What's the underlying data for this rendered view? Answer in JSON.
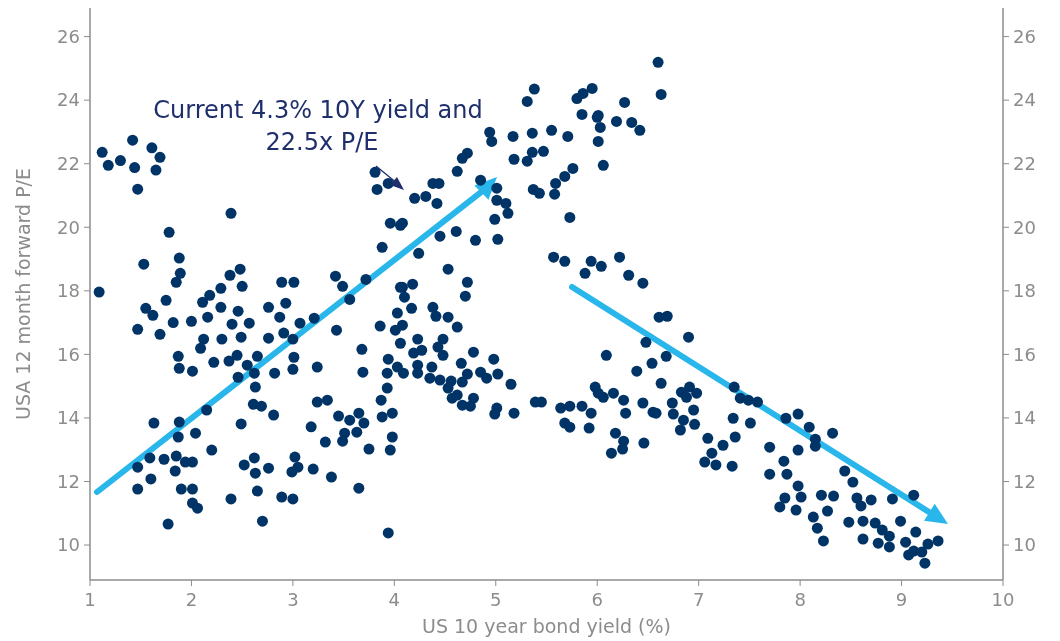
{
  "chart_data": {
    "type": "scatter",
    "xlabel": "US 10 year bond yield (%)",
    "ylabel": "USA 12 month forward P/E",
    "annotations": [
      "Current 4.3% 10Y yield and 22.5x P/E"
    ],
    "xlim": [
      1,
      10
    ],
    "xticks": [
      1,
      2,
      3,
      4,
      5,
      6,
      7,
      8,
      9,
      10
    ],
    "ylim": [
      8.9,
      26.9
    ],
    "yticks": [
      10,
      12,
      14,
      16,
      18,
      20,
      22,
      24,
      26
    ],
    "y2lim": [
      8.9,
      26.9
    ],
    "y2ticks": [
      10,
      12,
      14,
      16,
      18,
      20,
      22,
      24,
      26
    ],
    "grid": false,
    "marker": "circle",
    "series": [
      {
        "color": "#003366",
        "x": [
          1.12,
          1.18,
          1.3,
          1.42,
          1.44,
          1.47,
          1.61,
          1.65,
          1.69,
          1.09,
          2.39,
          1.78,
          1.53,
          1.88,
          1.89,
          1.85,
          1.75,
          1.55,
          1.62,
          1.47,
          1.69,
          1.82,
          2.0,
          2.11,
          2.18,
          2.29,
          2.38,
          2.48,
          2.5,
          2.29,
          2.16,
          2.4,
          2.46,
          2.57,
          2.3,
          2.49,
          2.12,
          2.09,
          1.87,
          1.88,
          2.01,
          2.22,
          2.37,
          2.45,
          2.55,
          2.65,
          2.62,
          2.46,
          2.76,
          2.76,
          2.89,
          3.01,
          2.93,
          2.87,
          2.91,
          3.0,
          3.07,
          3.21,
          3.01,
          3.0,
          2.82,
          2.63,
          2.61,
          2.69,
          2.81,
          3.24,
          3.43,
          3.42,
          3.49,
          3.56,
          3.72,
          3.86,
          3.68,
          3.69,
          3.94,
          3.93,
          3.93,
          3.87,
          3.24,
          3.34,
          3.45,
          3.56,
          3.65,
          3.7,
          3.51,
          3.63,
          3.88,
          3.98,
          3.98,
          3.96,
          3.75,
          3.49,
          3.32,
          3.18,
          3.2,
          3.38,
          3.65,
          3.94,
          3.02,
          3.05,
          2.99,
          3.0,
          2.89,
          2.76,
          2.62,
          2.52,
          2.63,
          2.65,
          2.7,
          2.39,
          2.49,
          2.2,
          2.15,
          2.04,
          1.88,
          1.87,
          1.63,
          1.59,
          1.47,
          1.73,
          1.85,
          1.94,
          2.01,
          1.84,
          1.6,
          1.47,
          1.9,
          2.01,
          2.01,
          2.06,
          1.77,
          3.81,
          3.83,
          3.94,
          3.96,
          4.06,
          3.88,
          4.06,
          5.38,
          5.31,
          4.94,
          4.96,
          5.17,
          5.36,
          5.55,
          5.71,
          5.85,
          5.8,
          5.95,
          6.0,
          6.03,
          6.19,
          6.27,
          6.34,
          6.42,
          6.63,
          6.01,
          6.06,
          5.76,
          5.68,
          5.59,
          5.58,
          5.73,
          5.47,
          5.36,
          5.31,
          5.18,
          5.37,
          5.43,
          4.72,
          4.67,
          4.62,
          4.85,
          5.01,
          5.01,
          5.1,
          5.12,
          4.99,
          5.02,
          4.8,
          4.61,
          4.38,
          4.44,
          4.2,
          4.31,
          4.42,
          4.08,
          4.24,
          4.53,
          4.72,
          4.7,
          4.08,
          4.18,
          4.1,
          4.17,
          4.03,
          4.08,
          4.38,
          4.41,
          4.53,
          4.62,
          4.01,
          4.06,
          4.23,
          4.48,
          4.43,
          4.19,
          4.27,
          4.48,
          4.03,
          4.23,
          4.37,
          4.66,
          4.78,
          4.98,
          4.09,
          4.23,
          4.35,
          4.45,
          4.56,
          4.67,
          4.72,
          4.85,
          4.91,
          5.02,
          5.15,
          4.53,
          4.62,
          4.57,
          4.67,
          4.78,
          4.75,
          5.01,
          4.99,
          5.18,
          5.39,
          5.45,
          5.64,
          5.73,
          5.85,
          5.94,
          5.68,
          5.73,
          5.92,
          5.98,
          6.01,
          6.16,
          6.26,
          6.09,
          6.39,
          6.54,
          6.68,
          6.63,
          6.45,
          6.28,
          6.18,
          6.55,
          6.74,
          5.57,
          5.68,
          5.88,
          5.94,
          6.04,
          6.22,
          6.31,
          6.45,
          6.61,
          6.69,
          6.48,
          6.6,
          5.86,
          6.01,
          4.45,
          6.9,
          6.06,
          6.26,
          6.25,
          6.14,
          6.46,
          6.58,
          6.75,
          6.83,
          6.91,
          6.88,
          6.98,
          6.95,
          6.85,
          6.96,
          6.82,
          7.09,
          7.24,
          7.13,
          7.06,
          7.17,
          7.33,
          7.36,
          7.34,
          7.35,
          7.41,
          7.49,
          7.58,
          7.51,
          7.7,
          7.7,
          7.84,
          7.87,
          7.86,
          7.98,
          8.09,
          8.15,
          8.15,
          8.32,
          7.98,
          7.98,
          8.01,
          7.85,
          7.8,
          7.96,
          8.21,
          8.33,
          8.27,
          8.13,
          8.17,
          8.23,
          8.44,
          8.52,
          8.56,
          8.6,
          8.7,
          8.48,
          8.62,
          8.62,
          8.74,
          8.81,
          8.88,
          8.77,
          8.88,
          8.91,
          9.12,
          8.99,
          9.04,
          9.14,
          9.07,
          9.12,
          9.2,
          9.23,
          9.26,
          9.36
        ],
        "values": [
          22.36,
          21.95,
          22.1,
          22.74,
          21.88,
          21.2,
          22.5,
          21.8,
          22.2,
          17.96,
          20.44,
          19.84,
          18.84,
          19.03,
          18.55,
          18.27,
          17.7,
          17.45,
          17.23,
          16.79,
          16.63,
          17.0,
          17.04,
          17.64,
          17.86,
          18.08,
          18.49,
          18.68,
          18.14,
          17.48,
          17.17,
          16.95,
          17.36,
          16.98,
          16.48,
          16.54,
          16.48,
          16.19,
          15.94,
          15.56,
          15.47,
          15.75,
          15.79,
          15.97,
          15.66,
          15.94,
          15.41,
          15.28,
          16.51,
          17.48,
          18.27,
          18.27,
          17.61,
          17.17,
          16.67,
          16.48,
          16.98,
          17.14,
          15.91,
          15.53,
          15.41,
          14.97,
          14.43,
          14.37,
          14.09,
          15.6,
          16.76,
          18.46,
          18.14,
          17.73,
          18.36,
          16.89,
          16.16,
          15.44,
          15.85,
          15.41,
          14.94,
          14.56,
          14.5,
          14.56,
          14.06,
          13.93,
          14.15,
          13.84,
          13.52,
          13.55,
          14.03,
          14.15,
          13.4,
          12.99,
          13.02,
          13.27,
          13.24,
          13.72,
          12.39,
          12.14,
          11.79,
          10.38,
          12.77,
          12.45,
          12.3,
          11.45,
          11.51,
          12.42,
          12.74,
          12.52,
          12.26,
          11.7,
          10.75,
          11.45,
          13.81,
          12.99,
          14.25,
          13.52,
          13.87,
          13.4,
          13.84,
          12.74,
          12.45,
          12.7,
          12.8,
          12.61,
          12.61,
          12.33,
          12.08,
          11.76,
          11.76,
          11.76,
          11.32,
          11.16,
          10.66,
          21.73,
          21.19,
          21.38,
          20.13,
          20.06,
          19.37,
          18.11,
          24.35,
          23.96,
          22.99,
          22.7,
          22.86,
          22.96,
          23.05,
          22.86,
          23.55,
          24.05,
          24.37,
          23.46,
          23.14,
          23.33,
          23.93,
          23.3,
          23.05,
          24.18,
          22.7,
          21.95,
          21.85,
          21.6,
          21.38,
          21.04,
          20.31,
          22.39,
          22.36,
          22.08,
          22.14,
          21.19,
          21.07,
          22.33,
          22.17,
          21.76,
          21.48,
          21.23,
          20.85,
          20.75,
          20.44,
          20.25,
          19.62,
          19.59,
          19.87,
          21.38,
          21.38,
          20.91,
          20.97,
          20.75,
          20.13,
          19.18,
          18.68,
          18.27,
          17.83,
          18.11,
          18.21,
          17.8,
          17.45,
          17.3,
          16.92,
          17.48,
          17.2,
          17.17,
          16.86,
          16.76,
          16.35,
          16.48,
          16.48,
          16.23,
          16.04,
          16.13,
          15.97,
          15.6,
          15.66,
          15.6,
          15.72,
          16.07,
          15.85,
          15.41,
          15.41,
          15.25,
          15.19,
          15.16,
          15.13,
          15.38,
          15.44,
          15.25,
          15.38,
          15.06,
          14.94,
          14.72,
          14.62,
          14.4,
          14.62,
          14.37,
          14.31,
          14.12,
          14.15,
          14.5,
          14.5,
          14.31,
          14.37,
          14.37,
          14.15,
          13.84,
          13.71,
          13.68,
          14.97,
          14.78,
          14.78,
          14.56,
          15.97,
          15.47,
          15.72,
          15.94,
          15.09,
          14.47,
          14.15,
          13.52,
          14.18,
          14.47,
          19.06,
          18.93,
          18.55,
          18.93,
          18.77,
          19.06,
          18.49,
          18.24,
          17.17,
          17.2,
          16.38,
          25.19,
          24.21,
          23.52,
          19.72,
          16.54,
          14.65,
          13.27,
          13.02,
          12.89,
          13.21,
          14.15,
          14.12,
          14.81,
          14.97,
          14.65,
          14.78,
          14.25,
          13.93,
          13.8,
          13.62,
          13.36,
          13.14,
          12.89,
          12.61,
          12.52,
          12.48,
          13.4,
          13.99,
          14.97,
          14.62,
          14.56,
          14.5,
          13.84,
          13.08,
          12.23,
          12.64,
          12.23,
          13.99,
          14.12,
          13.71,
          13.33,
          13.11,
          13.52,
          12.99,
          11.86,
          11.51,
          11.48,
          11.2,
          11.1,
          11.57,
          11.54,
          11.07,
          10.88,
          10.53,
          10.13,
          12.33,
          11.98,
          11.48,
          11.23,
          11.42,
          10.72,
          10.75,
          10.19,
          10.69,
          10.47,
          10.28,
          10.06,
          9.94,
          11.45,
          11.57,
          10.75,
          10.09,
          10.41,
          9.69,
          9.81,
          9.78,
          9.43,
          10.03,
          10.13
        ]
      }
    ]
  }
}
